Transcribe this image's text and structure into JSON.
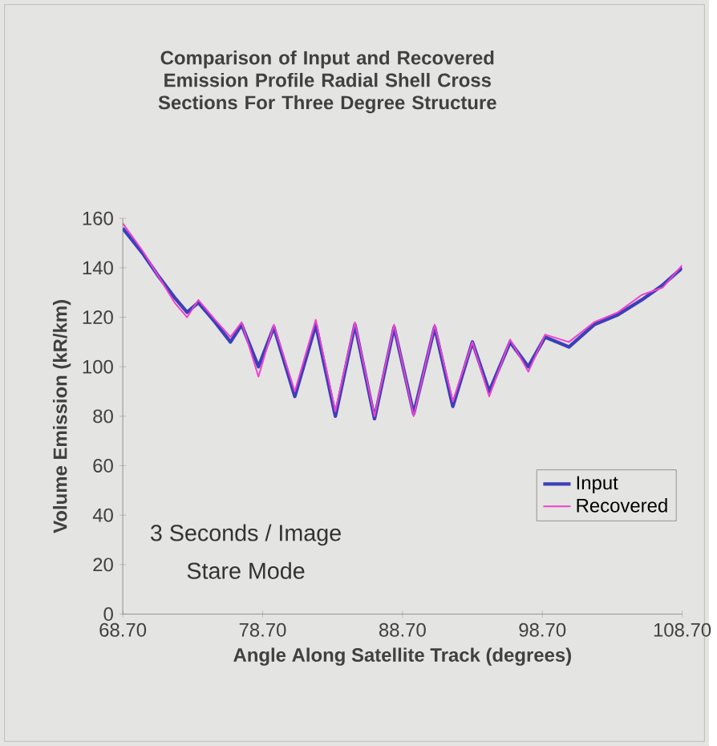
{
  "chart_data": {
    "type": "line",
    "title": "Comparison of Input and Recovered Emission Profile Radial Shell Cross Sections For Three Degree Structure",
    "xlabel": "Angle Along Satellite Track (degrees)",
    "ylabel": "Volume Emission (kR/km)",
    "annotations": [
      "3 Seconds / Image",
      "Stare Mode"
    ],
    "x": [
      68.7,
      70.1,
      71.2,
      72.4,
      73.3,
      74.1,
      75.3,
      76.4,
      77.2,
      78.4,
      79.5,
      81.0,
      82.5,
      83.9,
      85.3,
      86.7,
      88.1,
      89.5,
      91.0,
      92.3,
      93.7,
      94.9,
      96.4,
      97.7,
      98.9,
      100.6,
      102.4,
      104.1,
      105.8,
      107.3,
      108.7
    ],
    "series": [
      {
        "name": "Input",
        "color": "#3d3fb8",
        "values": [
          156,
          146,
          137,
          128,
          122,
          126,
          118,
          110,
          117,
          100,
          116,
          88,
          117,
          80,
          117,
          79,
          116,
          81,
          116,
          84,
          110,
          90,
          110,
          100,
          112,
          108,
          117,
          121,
          127,
          133,
          140
        ]
      },
      {
        "name": "Recovered",
        "color": "#f040d0",
        "values": [
          158,
          147,
          137,
          126,
          120,
          127,
          119,
          112,
          118,
          96,
          117,
          90,
          119,
          82,
          118,
          80,
          117,
          80,
          117,
          86,
          110,
          88,
          111,
          98,
          113,
          110,
          118,
          122,
          129,
          132,
          141
        ]
      }
    ],
    "xlim": [
      68.7,
      108.7
    ],
    "xticks": [
      {
        "value": 68.7,
        "label": "68.70"
      },
      {
        "value": 78.7,
        "label": "78.70"
      },
      {
        "value": 88.7,
        "label": "88.70"
      },
      {
        "value": 98.7,
        "label": "98.70"
      },
      {
        "value": 108.7,
        "label": "108.70"
      }
    ],
    "ylim": [
      0,
      160
    ],
    "yticks": [
      0,
      20,
      40,
      60,
      80,
      100,
      120,
      140,
      160
    ],
    "legend": "right",
    "line_style": "solid"
  }
}
